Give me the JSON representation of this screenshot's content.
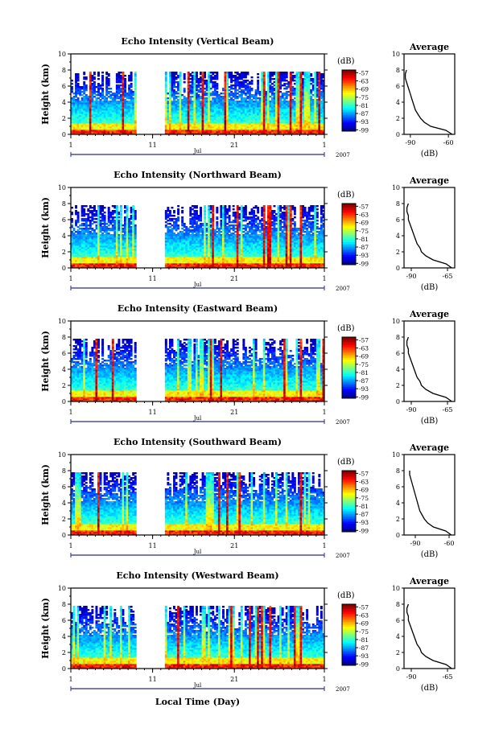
{
  "chart_data": [
    {
      "type": "heatmap",
      "title": "Echo Intensity (Vertical Beam)",
      "ylabel": "Height (km)",
      "ylim": [
        0,
        10
      ],
      "yticks": [
        "0",
        "2",
        "4",
        "6",
        "8",
        "10"
      ],
      "xlim": [
        1,
        32
      ],
      "xticks": [
        "1",
        "11",
        "21",
        "1"
      ],
      "month_label": "Jul",
      "year_label": "2007",
      "colorbar": {
        "unit": "(dB)",
        "ticks": [
          "-57",
          "-63",
          "-69",
          "-75",
          "-81",
          "-87",
          "-93",
          "-99"
        ],
        "range": [
          -100,
          -55
        ]
      },
      "data_gap_days": [
        8.8,
        12.5
      ],
      "profile": {
        "title": "Average",
        "xlabel": "(dB)",
        "xticks": [
          "-90",
          "-60"
        ],
        "xlim": [
          -95,
          -55
        ],
        "height": [
          0,
          0.5,
          1,
          1.5,
          2,
          2.5,
          3,
          3.5,
          4,
          4.5,
          5,
          5.5,
          6,
          6.5,
          7,
          7.5,
          8
        ],
        "values": [
          -57,
          -62,
          -74,
          -79,
          -82,
          -84,
          -86,
          -87,
          -88,
          -89,
          -90,
          -91,
          -92,
          -93,
          -94,
          -94,
          -93
        ]
      }
    },
    {
      "type": "heatmap",
      "title": "Echo Intensity (Northward Beam)",
      "ylabel": "Height (km)",
      "ylim": [
        0,
        10
      ],
      "yticks": [
        "0",
        "2",
        "4",
        "6",
        "8",
        "10"
      ],
      "xlim": [
        1,
        32
      ],
      "xticks": [
        "1",
        "11",
        "21",
        "1"
      ],
      "month_label": "Jul",
      "year_label": "2007",
      "colorbar": {
        "unit": "(dB)",
        "ticks": [
          "-57",
          "-63",
          "-69",
          "-75",
          "-81",
          "-87",
          "-93",
          "-99"
        ],
        "range": [
          -100,
          -55
        ]
      },
      "data_gap_days": [
        8.8,
        12.5
      ],
      "profile": {
        "title": "Average",
        "xlabel": "(dB)",
        "xticks": [
          "-90",
          "-65"
        ],
        "xlim": [
          -95,
          -60
        ],
        "height": [
          0,
          0.5,
          1,
          1.5,
          2,
          2.5,
          3,
          3.5,
          4,
          4.5,
          5,
          5.5,
          6,
          6.5,
          7,
          7.5,
          8
        ],
        "values": [
          -62,
          -66,
          -75,
          -80,
          -83,
          -84,
          -86,
          -87,
          -88,
          -89,
          -90,
          -91,
          -92,
          -92,
          -93,
          -93,
          -92
        ]
      }
    },
    {
      "type": "heatmap",
      "title": "Echo Intensity (Eastward Beam)",
      "ylabel": "Height (km)",
      "ylim": [
        0,
        10
      ],
      "yticks": [
        "0",
        "2",
        "4",
        "6",
        "8",
        "10"
      ],
      "xlim": [
        1,
        32
      ],
      "xticks": [
        "1",
        "11",
        "21",
        "1"
      ],
      "month_label": "Jul",
      "year_label": "2007",
      "colorbar": {
        "unit": "(dB)",
        "ticks": [
          "-57",
          "-63",
          "-69",
          "-75",
          "-81",
          "-87",
          "-93",
          "-99"
        ],
        "range": [
          -100,
          -55
        ]
      },
      "data_gap_days": [
        8.8,
        12.5
      ],
      "profile": {
        "title": "Average",
        "xlabel": "(dB)",
        "xticks": [
          "-90",
          "-65"
        ],
        "xlim": [
          -95,
          -60
        ],
        "height": [
          0,
          0.5,
          1,
          1.5,
          2,
          2.5,
          3,
          3.5,
          4,
          4.5,
          5,
          5.5,
          6,
          6.5,
          7,
          7.5,
          8
        ],
        "values": [
          -62,
          -66,
          -75,
          -80,
          -83,
          -84,
          -86,
          -87,
          -88,
          -89,
          -90,
          -91,
          -92,
          -92,
          -93,
          -93,
          -92
        ]
      }
    },
    {
      "type": "heatmap",
      "title": "Echo Intensity (Southward Beam)",
      "ylabel": "Height (km)",
      "ylim": [
        0,
        10
      ],
      "yticks": [
        "0",
        "2",
        "4",
        "6",
        "8",
        "10"
      ],
      "xlim": [
        1,
        32
      ],
      "xticks": [
        "1",
        "11",
        "21",
        "1"
      ],
      "month_label": "Jul",
      "year_label": "2007",
      "colorbar": {
        "unit": "(dB)",
        "ticks": [
          "-57",
          "-63",
          "-69",
          "-75",
          "-81",
          "-87",
          "-93",
          "-99"
        ],
        "range": [
          -100,
          -55
        ]
      },
      "data_gap_days": [
        8.8,
        12.5
      ],
      "profile": {
        "title": "Average",
        "xlabel": "(dB)",
        "xticks": [
          "-90",
          "-60"
        ],
        "xlim": [
          -100,
          -55
        ],
        "height": [
          0,
          0.5,
          1,
          1.5,
          2,
          2.5,
          3,
          3.5,
          4,
          4.5,
          5,
          5.5,
          6,
          6.5,
          7,
          7.5,
          8
        ],
        "values": [
          -58,
          -63,
          -74,
          -79,
          -82,
          -84,
          -86,
          -87,
          -88,
          -89,
          -90,
          -91,
          -92,
          -93,
          -94,
          -95,
          -95
        ]
      }
    },
    {
      "type": "heatmap",
      "title": "Echo Intensity (Westward Beam)",
      "ylabel": "Height (km)",
      "ylim": [
        0,
        10
      ],
      "yticks": [
        "0",
        "2",
        "4",
        "6",
        "8",
        "10"
      ],
      "xlim": [
        1,
        32
      ],
      "xticks": [
        "1",
        "11",
        "21",
        "1"
      ],
      "month_label": "Jul",
      "year_label": "2007",
      "xlabel": "Local Time (Day)",
      "colorbar": {
        "unit": "(dB)",
        "ticks": [
          "-57",
          "-63",
          "-69",
          "-75",
          "-81",
          "-87",
          "-93",
          "-99"
        ],
        "range": [
          -100,
          -55
        ]
      },
      "data_gap_days": [
        8.8,
        12.5
      ],
      "profile": {
        "title": "Average",
        "xlabel": "(dB)",
        "xticks": [
          "-90",
          "-65"
        ],
        "xlim": [
          -95,
          -60
        ],
        "height": [
          0,
          0.5,
          1,
          1.5,
          2,
          2.5,
          3,
          3.5,
          4,
          4.5,
          5,
          5.5,
          6,
          6.5,
          7,
          7.5,
          8
        ],
        "values": [
          -62,
          -66,
          -75,
          -80,
          -83,
          -84,
          -86,
          -87,
          -88,
          -89,
          -90,
          -91,
          -92,
          -92,
          -93,
          -93,
          -92
        ]
      }
    }
  ]
}
